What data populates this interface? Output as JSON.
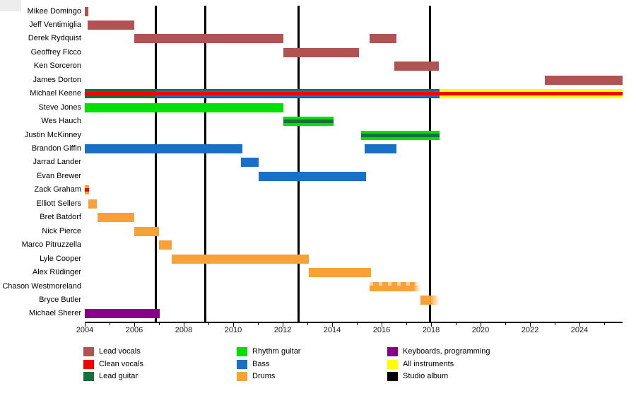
{
  "chart_data": {
    "type": "timeline",
    "x_axis": {
      "start_year": 2004,
      "end_year": 2025.74,
      "labeled_years": [
        2004,
        2006,
        2008,
        2010,
        2012,
        2014,
        2016,
        2018,
        2020,
        2022,
        2024
      ],
      "tick_every": 1,
      "label_every": 2
    },
    "roles": {
      "lead_vocals": {
        "label": "Lead vocals",
        "color": "#b25353"
      },
      "clean_vocals": {
        "label": "Clean vocals",
        "color": "#f40000"
      },
      "lead_guitar": {
        "label": "Lead guitar",
        "color": "#166f3d"
      },
      "rhythm_guitar": {
        "label": "Rhythm guitar",
        "color": "#00e000"
      },
      "bass": {
        "label": "Bass",
        "color": "#1a70c5"
      },
      "drums": {
        "label": "Drums",
        "color": "#f8a136"
      },
      "keyboards": {
        "label": "Keyboards, programming",
        "color": "#870087"
      },
      "all_instruments": {
        "label": "All instruments",
        "color": "#ffff00"
      },
      "studio_album": {
        "label": "Studio album",
        "color": "#000000"
      }
    },
    "legend_columns": [
      [
        "lead_vocals",
        "clean_vocals",
        "lead_guitar"
      ],
      [
        "rhythm_guitar",
        "bass",
        "drums"
      ],
      [
        "keyboards",
        "all_instruments",
        "studio_album"
      ]
    ],
    "album_release_lines": [
      2006.86,
      2008.86,
      2012.63,
      2017.96
    ],
    "members": [
      {
        "name": "Mikee Domingo",
        "bars": [
          {
            "start": 2004.0,
            "end": 2004.15,
            "roles": [
              "lead_vocals"
            ]
          }
        ]
      },
      {
        "name": "Jeff Ventimiglia",
        "bars": [
          {
            "start": 2004.1,
            "end": 2006.0,
            "roles": [
              "lead_vocals"
            ]
          }
        ]
      },
      {
        "name": "Derek Rydquist",
        "bars": [
          {
            "start": 2006.0,
            "end": 2012.03,
            "roles": [
              "lead_vocals"
            ]
          },
          {
            "start": 2015.5,
            "end": 2016.6,
            "roles": [
              "lead_vocals"
            ]
          }
        ]
      },
      {
        "name": "Geoffrey Ficco",
        "bars": [
          {
            "start": 2012.03,
            "end": 2015.1,
            "roles": [
              "lead_vocals"
            ]
          }
        ]
      },
      {
        "name": "Ken Sorceron",
        "bars": [
          {
            "start": 2016.5,
            "end": 2018.3,
            "roles": [
              "lead_vocals"
            ]
          }
        ]
      },
      {
        "name": "James Dorton",
        "bars": [
          {
            "start": 2022.6,
            "end": 2025.74,
            "roles": [
              "lead_vocals"
            ]
          }
        ]
      },
      {
        "name": "Michael Keene",
        "bars": [
          {
            "start": 2004.0,
            "end": 2006.86,
            "roles": [
              "lead_guitar",
              "clean_vocals"
            ]
          },
          {
            "start": 2006.86,
            "end": 2018.34,
            "roles": [
              "lead_guitar",
              "bass",
              "clean_vocals"
            ]
          },
          {
            "start": 2018.34,
            "end": 2025.74,
            "roles": [
              "all_instruments",
              "clean_vocals"
            ]
          }
        ]
      },
      {
        "name": "Steve Jones",
        "bars": [
          {
            "start": 2004.0,
            "end": 2012.03,
            "roles": [
              "rhythm_guitar"
            ]
          }
        ]
      },
      {
        "name": "Wes Hauch",
        "bars": [
          {
            "start": 2012.03,
            "end": 2014.06,
            "roles": [
              "rhythm_guitar",
              "lead_guitar"
            ]
          }
        ]
      },
      {
        "name": "Justin McKinney",
        "bars": [
          {
            "start": 2015.17,
            "end": 2018.34,
            "roles": [
              "rhythm_guitar",
              "lead_guitar"
            ]
          }
        ]
      },
      {
        "name": "Brandon Giffin",
        "bars": [
          {
            "start": 2004.0,
            "end": 2010.37,
            "roles": [
              "bass"
            ]
          },
          {
            "start": 2015.3,
            "end": 2016.6,
            "roles": [
              "bass"
            ]
          }
        ]
      },
      {
        "name": "Jarrad Lander",
        "bars": [
          {
            "start": 2010.31,
            "end": 2011.03,
            "roles": [
              "bass"
            ]
          }
        ]
      },
      {
        "name": "Evan Brewer",
        "bars": [
          {
            "start": 2011.03,
            "end": 2015.37,
            "roles": [
              "bass"
            ]
          }
        ]
      },
      {
        "name": "Zack Graham",
        "bars": [
          {
            "start": 2004.0,
            "end": 2004.17,
            "roles": [
              "drums",
              "clean_vocals"
            ]
          }
        ]
      },
      {
        "name": "Elliott Sellers",
        "bars": [
          {
            "start": 2004.14,
            "end": 2004.5,
            "roles": [
              "drums"
            ]
          }
        ]
      },
      {
        "name": "Bret Batdorf",
        "bars": [
          {
            "start": 2004.5,
            "end": 2006.0,
            "roles": [
              "drums"
            ]
          }
        ]
      },
      {
        "name": "Nick Pierce",
        "bars": [
          {
            "start": 2006.0,
            "end": 2007.0,
            "roles": [
              "drums"
            ]
          }
        ]
      },
      {
        "name": "Marco Pitruzzella",
        "bars": [
          {
            "start": 2007.0,
            "end": 2007.5,
            "roles": [
              "drums"
            ]
          }
        ]
      },
      {
        "name": "Lyle Cooper",
        "bars": [
          {
            "start": 2007.5,
            "end": 2013.06,
            "roles": [
              "drums"
            ]
          }
        ]
      },
      {
        "name": "Alex Rüdinger",
        "bars": [
          {
            "start": 2013.06,
            "end": 2015.57,
            "roles": [
              "drums"
            ]
          }
        ]
      },
      {
        "name": "Chason Westmoreland",
        "bars": [
          {
            "start": 2015.5,
            "end": 2017.57,
            "roles": [
              "drums"
            ],
            "effect": "fuzzy"
          }
        ]
      },
      {
        "name": "Bryce Butler",
        "bars": [
          {
            "start": 2017.57,
            "end": 2018.34,
            "roles": [
              "drums"
            ],
            "effect": "fade-right"
          }
        ]
      },
      {
        "name": "Michael Sherer",
        "bars": [
          {
            "start": 2004.0,
            "end": 2007.03,
            "roles": [
              "keyboards"
            ]
          }
        ]
      }
    ]
  }
}
